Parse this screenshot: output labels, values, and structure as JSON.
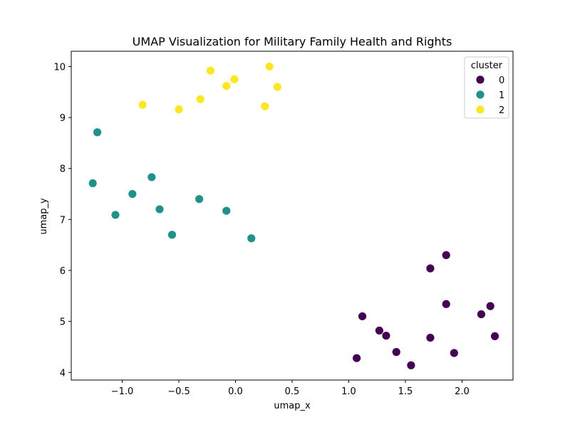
{
  "chart_data": {
    "type": "scatter",
    "title": "UMAP Visualization for Military Family Health and Rights",
    "xlabel": "umap_x",
    "ylabel": "umap_y",
    "xlim": [
      -1.45,
      2.45
    ],
    "ylim": [
      3.85,
      10.3
    ],
    "xticks": [
      -1.0,
      -0.5,
      0.0,
      0.5,
      1.0,
      1.5,
      2.0
    ],
    "xtick_labels": [
      "−1.0",
      "−0.5",
      "0.0",
      "0.5",
      "1.0",
      "1.5",
      "2.0"
    ],
    "yticks": [
      4,
      5,
      6,
      7,
      8,
      9,
      10
    ],
    "ytick_labels": [
      "4",
      "5",
      "6",
      "7",
      "8",
      "9",
      "10"
    ],
    "grid": false,
    "legend": {
      "title": "cluster",
      "placement": "top-right"
    },
    "series": [
      {
        "name": "0",
        "color": "#440154",
        "points": [
          [
            1.07,
            4.28
          ],
          [
            1.12,
            5.1
          ],
          [
            1.27,
            4.82
          ],
          [
            1.33,
            4.72
          ],
          [
            1.42,
            4.4
          ],
          [
            1.55,
            4.14
          ],
          [
            1.72,
            6.04
          ],
          [
            1.72,
            4.68
          ],
          [
            1.86,
            6.3
          ],
          [
            1.86,
            5.34
          ],
          [
            1.93,
            4.38
          ],
          [
            2.17,
            5.14
          ],
          [
            2.25,
            5.3
          ],
          [
            2.29,
            4.71
          ]
        ]
      },
      {
        "name": "1",
        "color": "#21918c",
        "points": [
          [
            -1.26,
            7.71
          ],
          [
            -1.22,
            8.71
          ],
          [
            -1.06,
            7.09
          ],
          [
            -0.91,
            7.5
          ],
          [
            -0.74,
            7.83
          ],
          [
            -0.67,
            7.2
          ],
          [
            -0.56,
            6.7
          ],
          [
            -0.32,
            7.4
          ],
          [
            -0.08,
            7.17
          ],
          [
            0.14,
            6.63
          ]
        ]
      },
      {
        "name": "2",
        "color": "#fde725",
        "points": [
          [
            -0.82,
            9.25
          ],
          [
            -0.5,
            9.16
          ],
          [
            -0.31,
            9.36
          ],
          [
            -0.22,
            9.92
          ],
          [
            -0.08,
            9.62
          ],
          [
            -0.01,
            9.75
          ],
          [
            0.26,
            9.22
          ],
          [
            0.3,
            10.0
          ],
          [
            0.37,
            9.6
          ]
        ]
      }
    ]
  }
}
